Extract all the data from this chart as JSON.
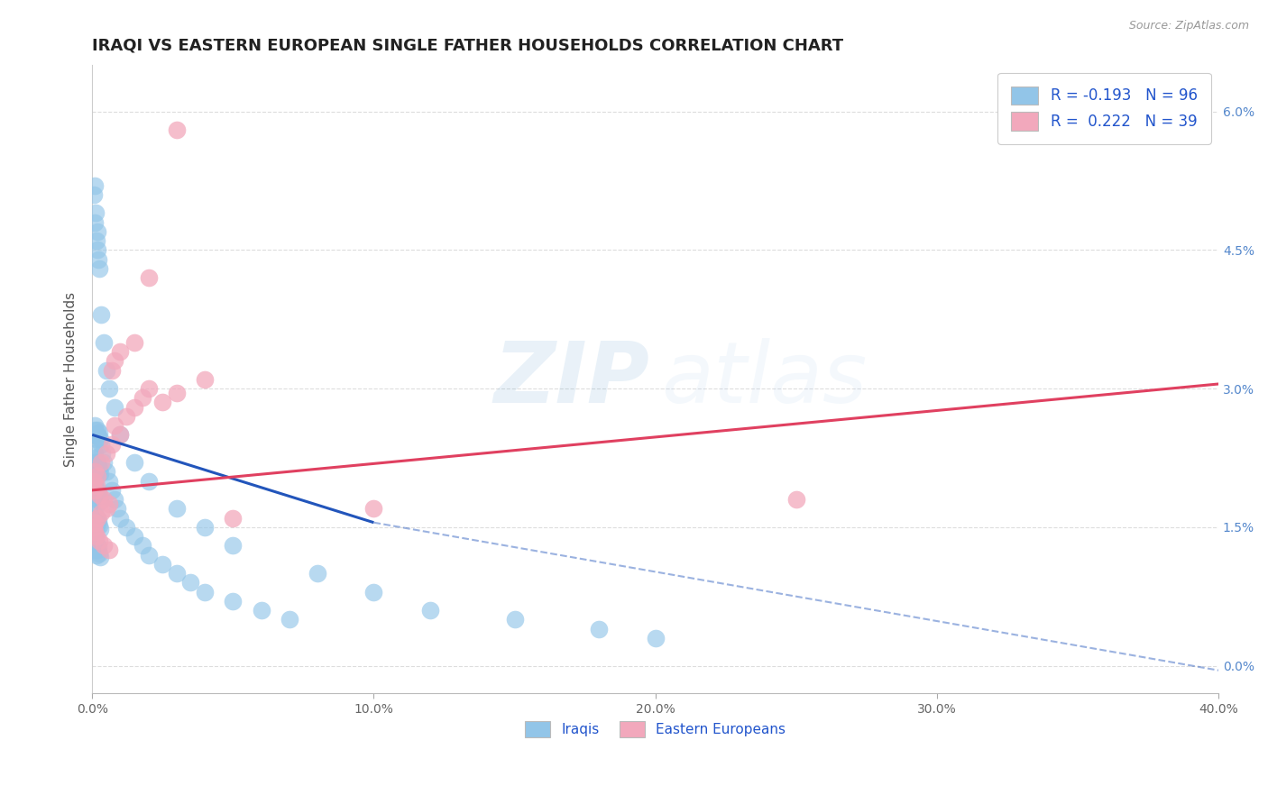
{
  "title": "IRAQI VS EASTERN EUROPEAN SINGLE FATHER HOUSEHOLDS CORRELATION CHART",
  "source": "Source: ZipAtlas.com",
  "ylabel": "Single Father Households",
  "xlim": [
    0.0,
    40.0
  ],
  "ylim": [
    -0.3,
    6.5
  ],
  "xticks": [
    0.0,
    10.0,
    20.0,
    30.0,
    40.0
  ],
  "yticks_right": [
    0.0,
    1.5,
    3.0,
    4.5,
    6.0
  ],
  "legend_labels": [
    "Iraqis",
    "Eastern Europeans"
  ],
  "R_iraqis": -0.193,
  "N_iraqis": 96,
  "R_eastern": 0.222,
  "N_eastern": 39,
  "blue_color": "#92C5E8",
  "pink_color": "#F2A8BC",
  "blue_line_color": "#2255BB",
  "pink_line_color": "#E04060",
  "background_color": "#FFFFFF",
  "grid_color": "#DDDDDD",
  "title_fontsize": 13,
  "axis_label_fontsize": 11,
  "tick_fontsize": 10,
  "iraqis_x": [
    0.05,
    0.08,
    0.1,
    0.12,
    0.15,
    0.18,
    0.2,
    0.22,
    0.25,
    0.28,
    0.05,
    0.08,
    0.1,
    0.12,
    0.15,
    0.18,
    0.2,
    0.22,
    0.25,
    0.28,
    0.05,
    0.08,
    0.1,
    0.12,
    0.15,
    0.18,
    0.2,
    0.22,
    0.25,
    0.28,
    0.05,
    0.08,
    0.1,
    0.12,
    0.15,
    0.18,
    0.2,
    0.22,
    0.25,
    0.28,
    0.05,
    0.08,
    0.1,
    0.12,
    0.15,
    0.18,
    0.2,
    0.22,
    0.25,
    0.28,
    0.3,
    0.35,
    0.4,
    0.5,
    0.6,
    0.7,
    0.8,
    0.9,
    1.0,
    1.2,
    1.5,
    1.8,
    2.0,
    2.5,
    3.0,
    3.5,
    4.0,
    5.0,
    6.0,
    7.0,
    0.05,
    0.08,
    0.1,
    0.12,
    0.15,
    0.18,
    0.2,
    0.22,
    0.25,
    0.3,
    0.4,
    0.5,
    0.6,
    0.8,
    1.0,
    1.5,
    2.0,
    3.0,
    4.0,
    5.0,
    8.0,
    10.0,
    12.0,
    15.0,
    18.0,
    20.0
  ],
  "iraqis_y": [
    2.5,
    2.55,
    2.6,
    2.5,
    2.45,
    2.55,
    2.5,
    2.48,
    2.52,
    2.45,
    2.2,
    2.25,
    2.3,
    2.15,
    2.1,
    2.2,
    2.15,
    2.18,
    2.12,
    2.08,
    1.9,
    1.95,
    2.0,
    1.85,
    1.8,
    1.9,
    1.85,
    1.88,
    1.82,
    1.78,
    1.6,
    1.65,
    1.7,
    1.55,
    1.5,
    1.6,
    1.55,
    1.58,
    1.52,
    1.48,
    1.3,
    1.35,
    1.4,
    1.25,
    1.2,
    1.3,
    1.25,
    1.28,
    1.22,
    1.18,
    2.4,
    2.3,
    2.2,
    2.1,
    2.0,
    1.9,
    1.8,
    1.7,
    1.6,
    1.5,
    1.4,
    1.3,
    1.2,
    1.1,
    1.0,
    0.9,
    0.8,
    0.7,
    0.6,
    0.5,
    5.1,
    5.2,
    4.8,
    4.9,
    4.6,
    4.7,
    4.5,
    4.4,
    4.3,
    3.8,
    3.5,
    3.2,
    3.0,
    2.8,
    2.5,
    2.2,
    2.0,
    1.7,
    1.5,
    1.3,
    1.0,
    0.8,
    0.6,
    0.5,
    0.4,
    0.3
  ],
  "eastern_x": [
    0.05,
    0.08,
    0.1,
    0.15,
    0.2,
    0.25,
    0.3,
    0.4,
    0.5,
    0.6,
    0.7,
    0.8,
    1.0,
    1.2,
    1.5,
    1.8,
    2.0,
    2.5,
    3.0,
    4.0,
    0.05,
    0.08,
    0.1,
    0.15,
    0.2,
    0.25,
    0.3,
    0.4,
    0.5,
    0.6,
    0.7,
    0.8,
    1.0,
    1.5,
    2.0,
    3.0,
    5.0,
    10.0,
    25.0
  ],
  "eastern_y": [
    2.0,
    1.9,
    2.1,
    1.95,
    2.05,
    1.85,
    2.2,
    1.8,
    2.3,
    1.75,
    2.4,
    2.6,
    2.5,
    2.7,
    2.8,
    2.9,
    3.0,
    2.85,
    2.95,
    3.1,
    1.5,
    1.45,
    1.55,
    1.4,
    1.6,
    1.35,
    1.65,
    1.3,
    1.7,
    1.25,
    3.2,
    3.3,
    3.4,
    3.5,
    4.2,
    5.8,
    1.6,
    1.7,
    1.8
  ],
  "blue_trendline_solid": {
    "x": [
      0.0,
      10.0
    ],
    "y": [
      2.5,
      1.55
    ]
  },
  "blue_trendline_dash": {
    "x": [
      10.0,
      40.0
    ],
    "y": [
      1.55,
      -0.05
    ]
  },
  "pink_trendline": {
    "x": [
      0.0,
      40.0
    ],
    "y": [
      1.9,
      3.05
    ]
  }
}
